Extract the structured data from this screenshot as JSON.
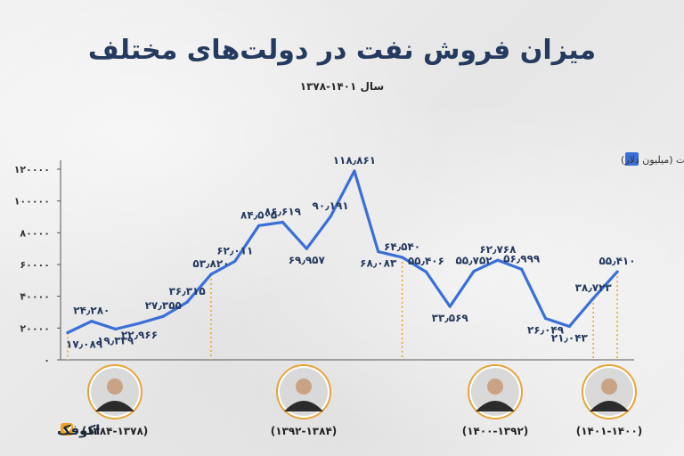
{
  "colors": {
    "line": "#3a6fd8",
    "title": "#243a5e",
    "divider": "#f0a020",
    "axis": "#555555",
    "label": "#243a5e"
  },
  "chart_data": {
    "type": "line",
    "title": "میزان فروش نفت در دولت‌های مختلف",
    "subtitle": "سال ۱۴۰۱-۱۳۷۸",
    "legend": {
      "label": "فروش نفت (میلیون دلار)",
      "placement": "top-right"
    },
    "yticks": [
      "۰",
      "۲۰۰۰۰",
      "۴۰۰۰۰",
      "۶۰۰۰۰",
      "۸۰۰۰۰",
      "۱۰۰۰۰۰",
      "۱۲۰۰۰۰"
    ],
    "ylim": [
      0,
      120000
    ],
    "grid": false,
    "x": [
      "1378",
      "1379",
      "1380",
      "1381",
      "1382",
      "1383",
      "1384",
      "1385",
      "1386",
      "1387",
      "1388",
      "1389",
      "1390",
      "1391",
      "1392",
      "1393",
      "1394",
      "1395",
      "1396",
      "1397",
      "1398",
      "1399",
      "1400",
      "1401"
    ],
    "values": [
      17089,
      24280,
      19339,
      22966,
      27355,
      36315,
      53820,
      62011,
      84505,
      86619,
      69957,
      90191,
      118861,
      68083,
      64540,
      55406,
      33569,
      55752,
      62768,
      56999,
      26049,
      21043,
      38723,
      55410
    ],
    "value_labels": [
      "۱۷٫۰۸۹",
      "۲۴٫۲۸۰",
      "۱۹٫۳۳۹",
      "۲۲٫۹۶۶",
      "۲۷٫۳۵۵",
      "۳۶٫۳۱۵",
      "۵۳٫۸۲۰",
      "۶۲٫۰۱۱",
      "۸۴٫۵۰۵",
      "۸۶٫۶۱۹",
      "۶۹٫۹۵۷",
      "۹۰٫۱۹۱",
      "۱۱۸٫۸۶۱",
      "۶۸٫۰۸۳",
      "۶۴٫۵۴۰",
      "۵۵٫۴۰۶",
      "۳۳٫۵۶۹",
      "۵۵٫۷۵۲",
      "۶۲٫۷۶۸",
      "۵۶٫۹۹۹",
      "۲۶٫۰۴۹",
      "۲۱٫۰۴۳",
      "۳۸٫۷۲۳",
      "۵۵٫۴۱۰"
    ],
    "label_positions": [
      "below",
      "above",
      "below",
      "below",
      "above",
      "above",
      "above",
      "above",
      "above",
      "above",
      "below",
      "above",
      "above",
      "below",
      "above",
      "above",
      "below",
      "above",
      "above",
      "above",
      "below",
      "below",
      "above",
      "above"
    ],
    "divider_indices": [
      0,
      6,
      14,
      22,
      23
    ],
    "periods": [
      {
        "label": "(۱۳۸۴-۱۳۷۸)",
        "start": 0,
        "end": 6
      },
      {
        "label": "(۱۳۹۲-۱۳۸۴)",
        "start": 6,
        "end": 14
      },
      {
        "label": "(۱۴۰۰-۱۳۹۲)",
        "start": 14,
        "end": 22
      },
      {
        "label": "(۱۴۰۱-۱۴۰۰)",
        "start": 22,
        "end": 23
      }
    ]
  },
  "brand": {
    "name": "اکوفک"
  }
}
